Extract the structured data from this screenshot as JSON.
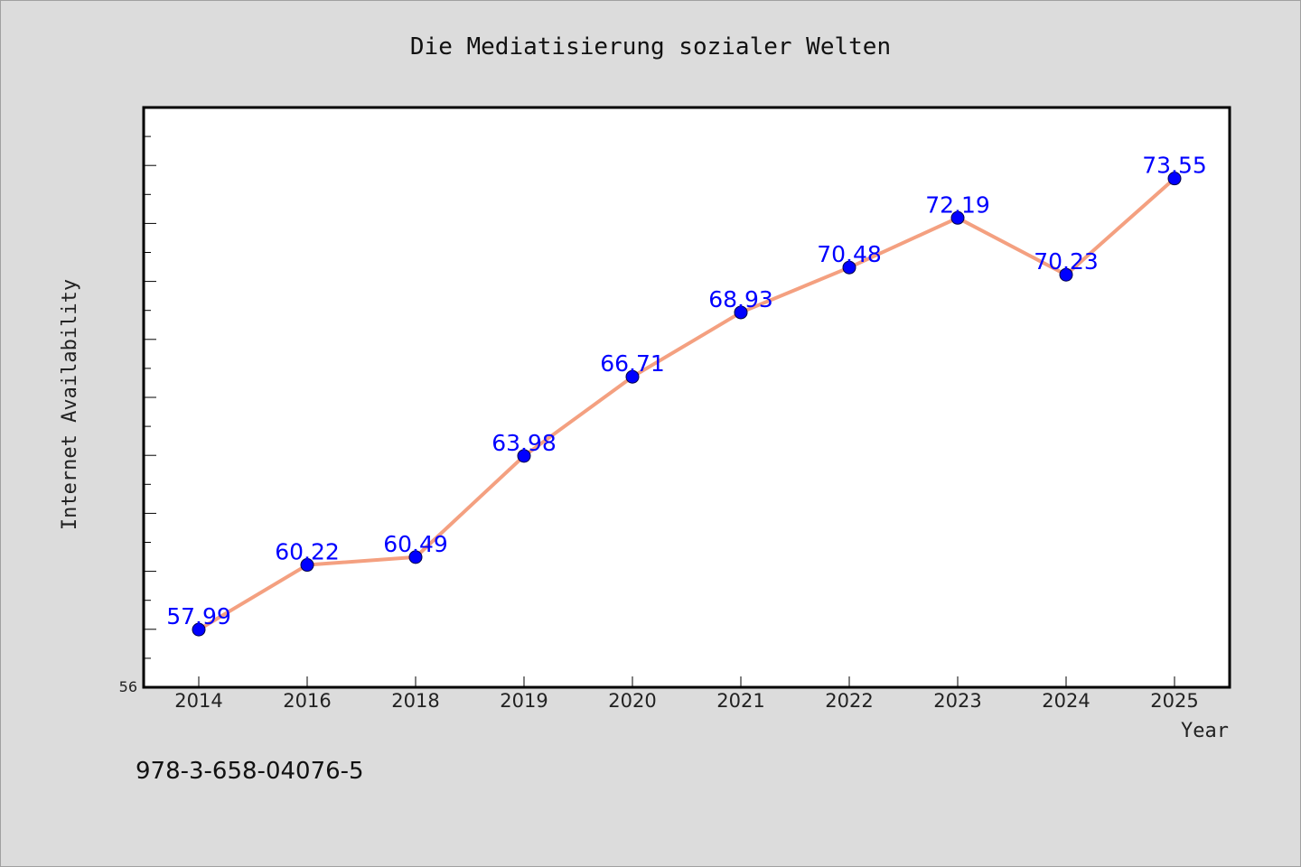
{
  "chart_data": {
    "type": "line",
    "title": "Die Mediatisierung sozialer Welten",
    "xlabel": "Year",
    "ylabel": "Internet Availability",
    "categories": [
      "2014",
      "2016",
      "2018",
      "2019",
      "2020",
      "2021",
      "2022",
      "2023",
      "2024",
      "2025"
    ],
    "series": [
      {
        "values": [
          57.99,
          60.22,
          60.49,
          63.98,
          66.71,
          68.93,
          70.48,
          72.19,
          70.23,
          73.55
        ],
        "data_labels": [
          "57.99",
          "60.22",
          "60.49",
          "63.98",
          "66.71",
          "68.93",
          "70.48",
          "72.19",
          "70.23",
          "73.55"
        ],
        "line_color": "#f4a080",
        "marker_color": "#0000ff"
      }
    ],
    "ylim": [
      56,
      76
    ],
    "y_min_label": "56",
    "grid": false,
    "legend": "none"
  },
  "footer": {
    "isbn": "978-3-658-04076-5"
  }
}
